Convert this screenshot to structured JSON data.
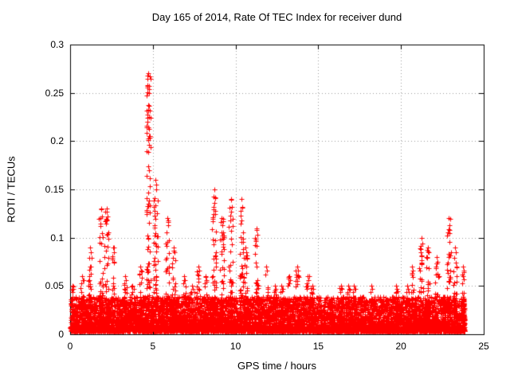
{
  "chart_data": {
    "type": "scatter",
    "title": "Day 165 of 2014, Rate Of TEC Index for receiver dund",
    "xlabel": "GPS time / hours",
    "ylabel": "ROTI / TECUs",
    "xlim": [
      0,
      25
    ],
    "ylim": [
      0,
      0.3
    ],
    "xticks": [
      0,
      5,
      10,
      15,
      20,
      25
    ],
    "xticklabels": [
      "0",
      "5",
      "10",
      "15",
      "20",
      "25"
    ],
    "yticks": [
      0,
      0.05,
      0.1,
      0.15,
      0.2,
      0.25,
      0.3
    ],
    "yticklabels": [
      "0",
      "0.05",
      "0.1",
      "0.15",
      "0.2",
      "0.25",
      "0.3"
    ],
    "grid": true,
    "grid_style": "dotted",
    "grid_color": "#9a9a9a",
    "border_color": "#000000",
    "text_color": "#000000",
    "legend": "none",
    "marker": "plus",
    "marker_color": "#ff0000",
    "x_data_start": 0,
    "x_data_end": 23.83,
    "baseline_band": [
      0.0,
      0.04
    ],
    "bin_width_hours": 0.5,
    "points_per_bin": 170,
    "envelope": [
      [
        0.0,
        0.05
      ],
      [
        0.5,
        0.06
      ],
      [
        1.0,
        0.09
      ],
      [
        1.5,
        0.13
      ],
      [
        2.0,
        0.13
      ],
      [
        2.5,
        0.09
      ],
      [
        3.0,
        0.06
      ],
      [
        3.5,
        0.05
      ],
      [
        4.0,
        0.07
      ],
      [
        4.5,
        0.27
      ],
      [
        5.0,
        0.16
      ],
      [
        5.5,
        0.12
      ],
      [
        6.0,
        0.09
      ],
      [
        6.5,
        0.06
      ],
      [
        7.0,
        0.05
      ],
      [
        7.5,
        0.07
      ],
      [
        8.0,
        0.06
      ],
      [
        8.5,
        0.15
      ],
      [
        9.0,
        0.12
      ],
      [
        9.5,
        0.14
      ],
      [
        10.0,
        0.14
      ],
      [
        10.5,
        0.09
      ],
      [
        11.0,
        0.11
      ],
      [
        11.5,
        0.07
      ],
      [
        12.0,
        0.05
      ],
      [
        12.5,
        0.05
      ],
      [
        13.0,
        0.06
      ],
      [
        13.5,
        0.07
      ],
      [
        14.0,
        0.06
      ],
      [
        14.5,
        0.05
      ],
      [
        15.0,
        0.04
      ],
      [
        15.5,
        0.04
      ],
      [
        16.0,
        0.05
      ],
      [
        16.5,
        0.05
      ],
      [
        17.0,
        0.05
      ],
      [
        17.5,
        0.04
      ],
      [
        18.0,
        0.05
      ],
      [
        18.5,
        0.04
      ],
      [
        19.0,
        0.04
      ],
      [
        19.5,
        0.05
      ],
      [
        20.0,
        0.05
      ],
      [
        20.5,
        0.07
      ],
      [
        21.0,
        0.1
      ],
      [
        21.5,
        0.09
      ],
      [
        22.0,
        0.08
      ],
      [
        22.5,
        0.12
      ],
      [
        23.0,
        0.09
      ],
      [
        23.5,
        0.07
      ]
    ]
  }
}
